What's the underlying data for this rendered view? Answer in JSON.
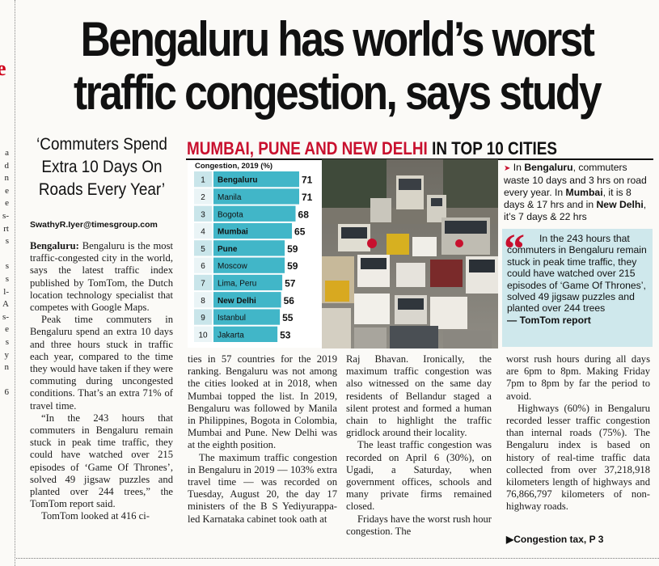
{
  "headline": {
    "line1": "Bengaluru has world’s worst",
    "line2": "traffic congestion, says study"
  },
  "pull_quote": {
    "line1": "‘Commuters Spend",
    "line2": "Extra 10 Days On",
    "line3": "Roads Every Year’"
  },
  "byline": "SwathyR.Iyer@timesgroup.com",
  "banner": {
    "red_part": "MUMBAI, PUNE AND NEW DELHI",
    "black_part": "IN TOP 10 CITIES"
  },
  "chart_data": {
    "type": "bar",
    "title": "Congestion, 2019 (%)",
    "ranks": [
      "1",
      "2",
      "3",
      "4",
      "5",
      "6",
      "7",
      "8",
      "9",
      "10"
    ],
    "categories": [
      "Bengaluru",
      "Manila",
      "Bogota",
      "Mumbai",
      "Pune",
      "Moscow",
      "Lima, Peru",
      "New Delhi",
      "Istanbul",
      "Jakarta"
    ],
    "values": [
      71,
      71,
      68,
      65,
      59,
      59,
      57,
      56,
      55,
      53
    ],
    "bold_categories": [
      "Bengaluru",
      "Mumbai",
      "Pune",
      "New Delhi"
    ],
    "xlim": [
      0,
      71
    ],
    "colors": {
      "bar": "#41b6c8",
      "rank_shaded": "#c9e5ea",
      "rank_plain": "#eaf4f6"
    }
  },
  "sidebar": {
    "arrow": "➤",
    "t1": "In ",
    "b1": "Bengaluru",
    "t2": ", commuters waste 10 days and 3 hrs on road every year. In ",
    "b2": "Mumbai",
    "t3": ", it is 8 days & 17 hrs and in ",
    "b3": "New Delhi",
    "t4": ", it’s 7 days & 22 hrs"
  },
  "quote_box": {
    "mark": "“",
    "text": "In the 243 hours that commuters in Bengaluru remain stuck in peak time traffic, they could have watched over 215 episodes of ‘Game Of Thrones’, solved 49 jigsaw puzzles and planted over 244 trees",
    "source": "— TomTom report"
  },
  "columns": {
    "c1_lead": "Bengaluru:",
    "c1_p1": " Bengaluru is the most traffic-congested city in the world, says the latest traffic index published by TomTom, the Dutch location technology specialist that competes with Google Maps.",
    "c1_p2": "Peak time commuters in Bengaluru spend an extra 10 days and three hours stuck in traffic each year, compared to the time they would have taken if they were commuting during uncongested conditions. That’s an extra 71% of travel time.",
    "c1_p3": "“In the 243 hours that commuters in Bengaluru remain stuck in peak time traffic, they could have watched over 215 episodes of ‘Game Of Thrones’, solved 49 jigsaw puzzles and planted over 244 trees,” the TomTom report said.",
    "c1_p4": "TomTom looked at 416 ci-",
    "c2_p1": "ties in 57 countries for the 2019 ranking. Bengaluru was not among the cities looked at in 2018, when Mumbai topped the list. In 2019, Bengaluru was followed by Manila in Philippines, Bogota in Colombia, Mumbai and Pune. New Delhi was at the eighth position.",
    "c2_p2": "The maximum traffic congestion in Bengaluru in 2019 — 103% extra travel time — was recorded on Tuesday, August 20, the day 17 ministers of the B S Yediyurappa-led Karnataka cabinet took oath at",
    "c3_p1": "Raj Bhavan. Ironically, the maximum traffic congestion was also witnessed on the same day residents of Bellandur staged a silent protest and formed a human chain to highlight the traffic gridlock around their locality.",
    "c3_p2": "The least traffic congestion was recorded on April 6 (30%), on Ugadi, a Saturday, when government offices, schools and many private firms remained closed.",
    "c3_p3": "Fridays have the worst rush hour congestion. The",
    "c4_p1": "worst rush hours during all days are 6pm to 8pm. Making Friday 7pm to 8pm by far the period to avoid.",
    "c4_p2": "Highways (60%) in Bengaluru recorded lesser traffic congestion than internal roads (75%). The Bengaluru index is based on history of real-time traffic data collected from over 37,218,918 kilometers length of highways and 76,866,797 kilometers of non-highway roads."
  },
  "continuation": "▶Congestion tax, P 3",
  "left_edge": {
    "red_letter": "e",
    "fragments": [
      "a",
      "d",
      "n",
      "e",
      "e",
      "s-",
      "rt",
      "s",
      "",
      "s",
      "s",
      "l-",
      "A",
      "s-",
      "e",
      "s",
      "y",
      "n",
      "",
      "6"
    ]
  }
}
